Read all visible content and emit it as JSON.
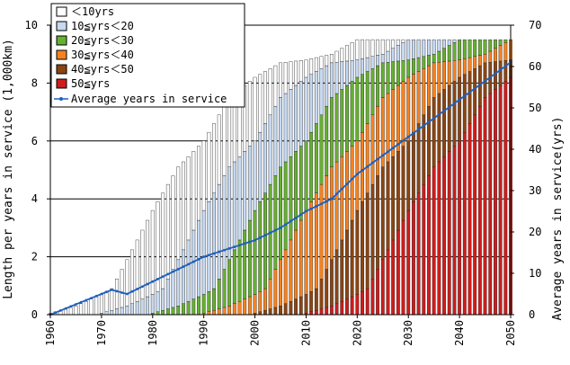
{
  "chart_data": {
    "type": "bar",
    "stacked": true,
    "x_range": [
      1960,
      2050
    ],
    "x_ticks": [
      "1960",
      "1970",
      "1980",
      "1990",
      "2000",
      "2010",
      "2020",
      "2030",
      "2040",
      "2050"
    ],
    "y_left": {
      "label": "Length per years in service (1,000km)",
      "range": [
        0,
        10
      ],
      "ticks": [
        "0",
        "2",
        "4",
        "6",
        "8",
        "10"
      ]
    },
    "y_right": {
      "label": "Average years in service(yrs)",
      "range": [
        0,
        70
      ],
      "ticks": [
        "0",
        "10",
        "20",
        "30",
        "40",
        "50",
        "60",
        "70"
      ]
    },
    "grid": "horizontal",
    "legend_position": "top-left",
    "series": [
      {
        "name": "＜10yrs",
        "color": "#ffffff"
      },
      {
        "name": "10≦yrs＜20",
        "color": "#c6d9f1"
      },
      {
        "name": "20≦yrs＜30",
        "color": "#66b032"
      },
      {
        "name": "30≦yrs＜40",
        "color": "#f58220"
      },
      {
        "name": "40≦yrs＜50",
        "color": "#8b4513"
      },
      {
        "name": "50≦yrs",
        "color": "#d01c1c"
      }
    ],
    "line_series": {
      "name": "Average years in service",
      "color": "#1f5fbf",
      "axis": "right"
    },
    "key_years": [
      1960,
      1965,
      1970,
      1972,
      1975,
      1980,
      1985,
      1990,
      1995,
      2000,
      2005,
      2010,
      2015,
      2020,
      2030,
      2040,
      2050
    ],
    "cumulative_length": [
      0.05,
      0.3,
      0.7,
      0.9,
      1.9,
      3.6,
      5.1,
      6.0,
      7.5,
      8.2,
      8.7,
      8.8,
      9.0,
      9.5,
      9.5,
      9.5,
      9.5
    ],
    "average_years": [
      0,
      2.5,
      5,
      6,
      5,
      8,
      11,
      14,
      16,
      18,
      21,
      25,
      28,
      34,
      43,
      52,
      61
    ],
    "band_ages_in_2050": [
      {
        "series": "＜10yrs",
        "years": [
          2041,
          2050
        ]
      },
      {
        "series": "10≦yrs＜20",
        "years": [
          2031,
          2040
        ]
      },
      {
        "series": "20≦yrs＜30",
        "years": [
          2021,
          2030
        ]
      },
      {
        "series": "30≦yrs＜40",
        "years": [
          2011,
          2020
        ]
      },
      {
        "series": "40≦yrs＜50",
        "years": [
          2001,
          2010
        ]
      },
      {
        "series": "50≦yrs",
        "years": [
          1960,
          2000
        ]
      }
    ]
  }
}
